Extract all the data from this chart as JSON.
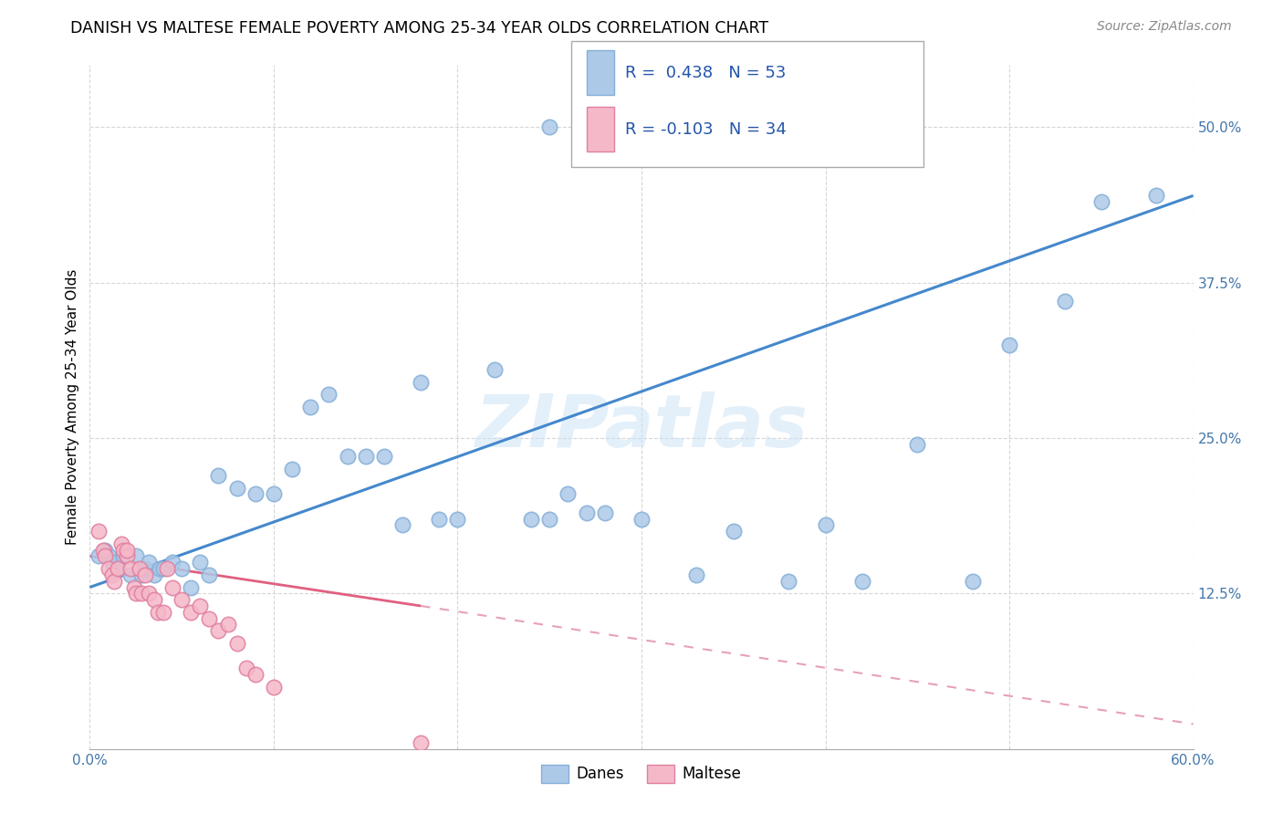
{
  "title": "DANISH VS MALTESE FEMALE POVERTY AMONG 25-34 YEAR OLDS CORRELATION CHART",
  "source": "Source: ZipAtlas.com",
  "ylabel": "Female Poverty Among 25-34 Year Olds",
  "xlim": [
    0.0,
    0.6
  ],
  "ylim": [
    0.0,
    0.55
  ],
  "xticks": [
    0.0,
    0.1,
    0.2,
    0.3,
    0.4,
    0.5,
    0.6
  ],
  "xticklabels": [
    "0.0%",
    "",
    "",
    "",
    "",
    "",
    "60.0%"
  ],
  "yticks": [
    0.0,
    0.125,
    0.25,
    0.375,
    0.5
  ],
  "yticklabels": [
    "",
    "12.5%",
    "25.0%",
    "37.5%",
    "50.0%"
  ],
  "grid_color": "#cccccc",
  "watermark": "ZIPatlas",
  "danes_color": "#adc9e8",
  "maltese_color": "#f5b8c8",
  "danes_edge": "#85afd8",
  "maltese_edge": "#e080a0",
  "trend_danes_color": "#4488cc",
  "trend_maltese_solid_color": "#e06080",
  "trend_maltese_dash_color": "#e8a0b8",
  "danes_x": [
    0.005,
    0.008,
    0.01,
    0.012,
    0.015,
    0.018,
    0.02,
    0.022,
    0.025,
    0.028,
    0.03,
    0.032,
    0.035,
    0.038,
    0.04,
    0.045,
    0.05,
    0.055,
    0.06,
    0.065,
    0.07,
    0.08,
    0.09,
    0.1,
    0.11,
    0.12,
    0.13,
    0.14,
    0.15,
    0.16,
    0.17,
    0.18,
    0.19,
    0.2,
    0.22,
    0.24,
    0.25,
    0.26,
    0.27,
    0.28,
    0.3,
    0.33,
    0.35,
    0.38,
    0.4,
    0.42,
    0.45,
    0.48,
    0.5,
    0.53,
    0.55,
    0.58,
    0.25
  ],
  "danes_y": [
    0.155,
    0.16,
    0.155,
    0.15,
    0.145,
    0.155,
    0.155,
    0.14,
    0.155,
    0.14,
    0.145,
    0.15,
    0.14,
    0.145,
    0.145,
    0.15,
    0.145,
    0.13,
    0.15,
    0.14,
    0.22,
    0.21,
    0.205,
    0.205,
    0.225,
    0.275,
    0.285,
    0.235,
    0.235,
    0.235,
    0.18,
    0.295,
    0.185,
    0.185,
    0.305,
    0.185,
    0.185,
    0.205,
    0.19,
    0.19,
    0.185,
    0.14,
    0.175,
    0.135,
    0.18,
    0.135,
    0.245,
    0.135,
    0.325,
    0.36,
    0.44,
    0.445,
    0.5
  ],
  "maltese_x": [
    0.005,
    0.007,
    0.008,
    0.01,
    0.012,
    0.013,
    0.015,
    0.017,
    0.018,
    0.02,
    0.02,
    0.022,
    0.024,
    0.025,
    0.027,
    0.028,
    0.03,
    0.032,
    0.035,
    0.037,
    0.04,
    0.042,
    0.045,
    0.05,
    0.055,
    0.06,
    0.065,
    0.07,
    0.075,
    0.08,
    0.085,
    0.09,
    0.1,
    0.18
  ],
  "maltese_y": [
    0.175,
    0.16,
    0.155,
    0.145,
    0.14,
    0.135,
    0.145,
    0.165,
    0.16,
    0.155,
    0.16,
    0.145,
    0.13,
    0.125,
    0.145,
    0.125,
    0.14,
    0.125,
    0.12,
    0.11,
    0.11,
    0.145,
    0.13,
    0.12,
    0.11,
    0.115,
    0.105,
    0.095,
    0.1,
    0.085,
    0.065,
    0.06,
    0.05,
    0.005
  ],
  "trend_danes_x0": 0.0,
  "trend_danes_y0": 0.13,
  "trend_danes_x1": 0.6,
  "trend_danes_y1": 0.445,
  "trend_maltese_solid_x0": 0.0,
  "trend_maltese_solid_y0": 0.155,
  "trend_maltese_solid_x1": 0.18,
  "trend_maltese_solid_y1": 0.115,
  "trend_maltese_dash_x0": 0.18,
  "trend_maltese_dash_y0": 0.115,
  "trend_maltese_dash_x1": 0.6,
  "trend_maltese_dash_y1": 0.02
}
